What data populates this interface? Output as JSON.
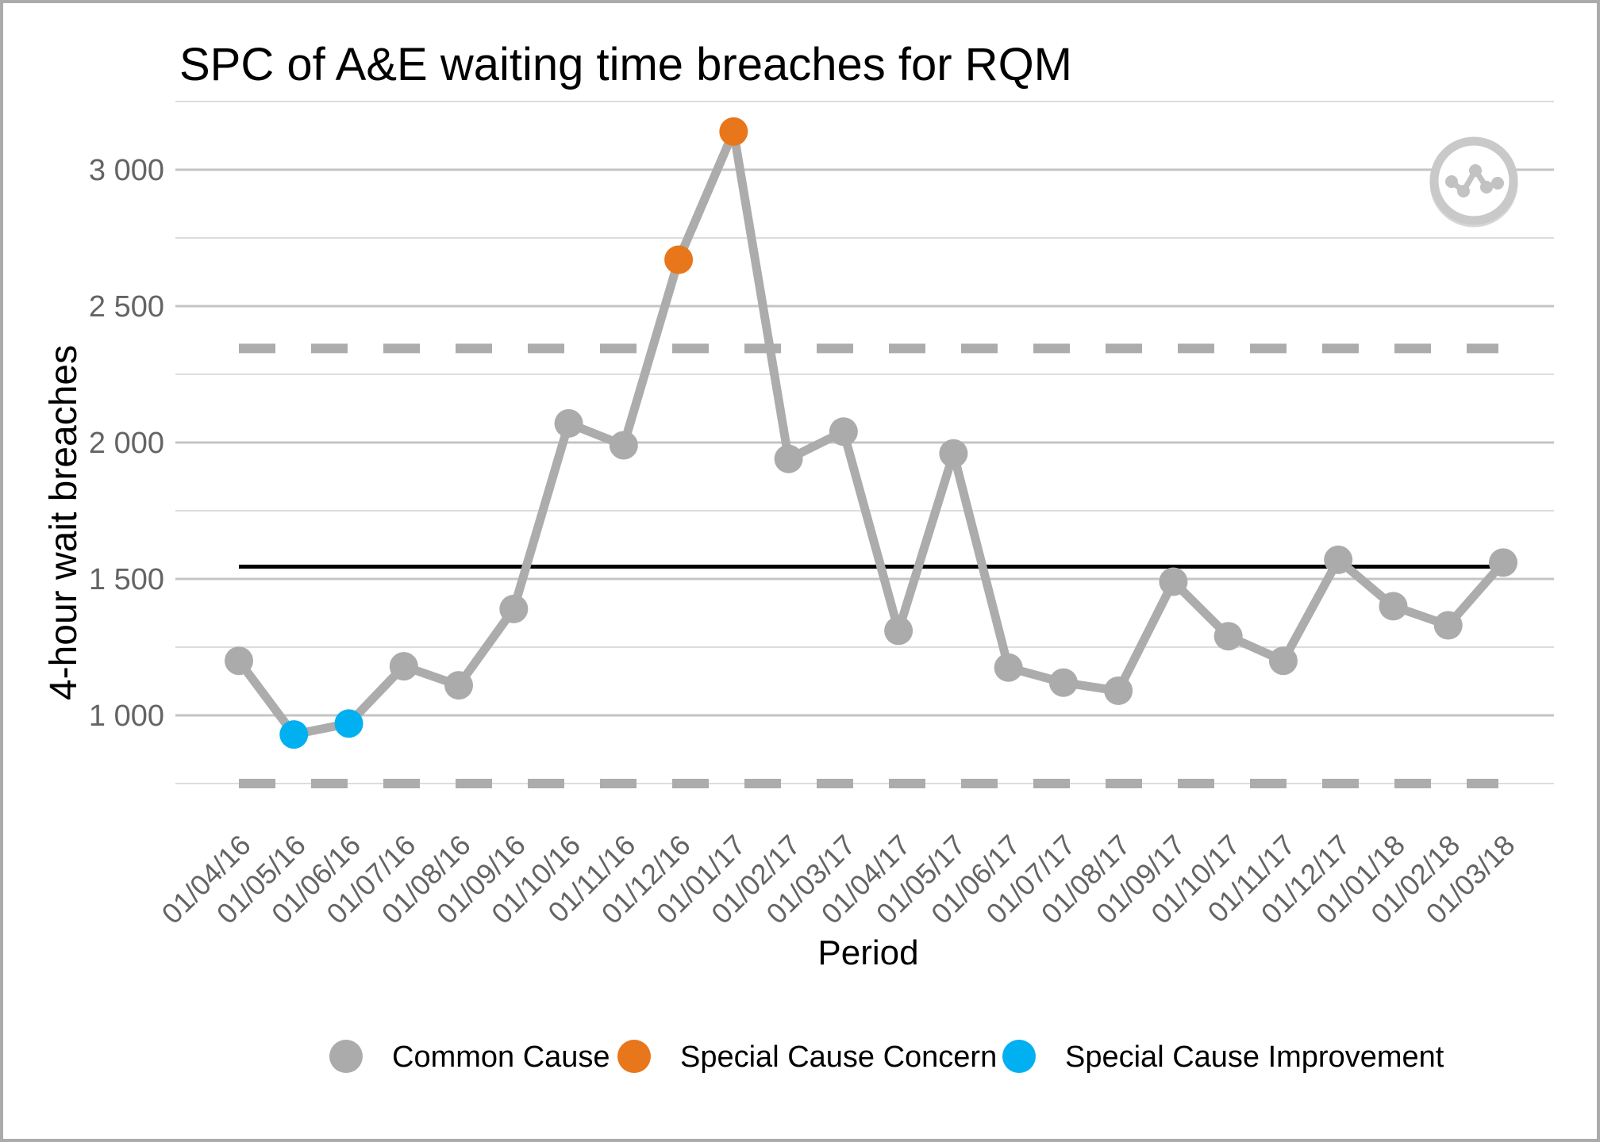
{
  "page": {
    "background_color": "#FFFFFF",
    "border_color": "#ABABAB"
  },
  "icon_button": {
    "name": "line-chart-icon",
    "color": "#C6C6C6"
  },
  "chart_data": {
    "type": "line",
    "subtype": "spc-control-chart",
    "title": "SPC of A&E waiting time breaches for RQM",
    "xlabel": "Period",
    "ylabel": "4-hour wait breaches",
    "grid": "horizontal-only",
    "legend_position": "bottom-center",
    "categories": [
      "01/04/16",
      "01/05/16",
      "01/06/16",
      "01/07/16",
      "01/08/16",
      "01/09/16",
      "01/10/16",
      "01/11/16",
      "01/12/16",
      "01/01/17",
      "01/02/17",
      "01/03/17",
      "01/04/17",
      "01/05/17",
      "01/06/17",
      "01/07/17",
      "01/08/17",
      "01/09/17",
      "01/10/17",
      "01/11/17",
      "01/12/17",
      "01/01/18",
      "01/02/18",
      "01/03/18"
    ],
    "values": [
      1200,
      930,
      970,
      1180,
      1110,
      1390,
      2070,
      1990,
      2670,
      3140,
      1940,
      2040,
      1310,
      1960,
      1175,
      1120,
      1090,
      1490,
      1290,
      1200,
      1570,
      1400,
      1330,
      1560
    ],
    "point_types": [
      "common",
      "improvement",
      "improvement",
      "common",
      "common",
      "common",
      "common",
      "common",
      "concern",
      "concern",
      "common",
      "common",
      "common",
      "common",
      "common",
      "common",
      "common",
      "common",
      "common",
      "common",
      "common",
      "common",
      "common",
      "common"
    ],
    "mean": 1545,
    "upper_control_limit": 2345,
    "lower_control_limit": 750,
    "ylim": [
      615,
      3310
    ],
    "yticks": [
      {
        "value": 1000,
        "label": "1 000"
      },
      {
        "value": 1500,
        "label": "1 500"
      },
      {
        "value": 2000,
        "label": "2 000"
      },
      {
        "value": 2500,
        "label": "2 500"
      },
      {
        "value": 3000,
        "label": "3 000"
      }
    ],
    "yticks_minor": [
      750,
      1250,
      1750,
      2250,
      2750,
      3250
    ],
    "legend": [
      {
        "label": "Common Cause",
        "type": "common"
      },
      {
        "label": "Special Cause Concern",
        "type": "concern"
      },
      {
        "label": "Special Cause Improvement",
        "type": "improvement"
      }
    ],
    "colors": {
      "common": "#ABABAB",
      "concern": "#E8761B",
      "improvement": "#00B0F0",
      "line": "#ACACAC",
      "mean_line": "#000000",
      "limit_line": "#ACACAC",
      "gridline_major": "#C4C4C4",
      "gridline_minor": "#DDDDDD"
    }
  }
}
